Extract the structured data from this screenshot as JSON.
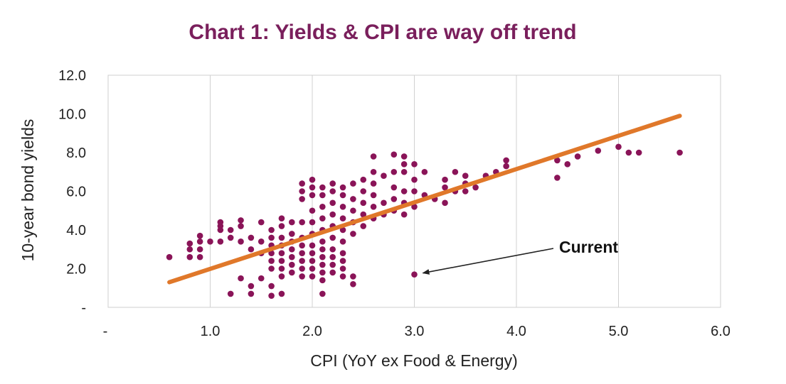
{
  "chart_data": {
    "type": "scatter",
    "title": "Chart 1: Yields & CPI are way off trend",
    "xlabel": "CPI (YoY ex Food & Energy)",
    "ylabel": "10-year bond yields",
    "xlim": [
      0,
      6
    ],
    "ylim": [
      0,
      12
    ],
    "x_ticks": [
      0,
      1,
      2,
      3,
      4,
      5,
      6
    ],
    "x_tick_labels": [
      "-",
      "1.0",
      "2.0",
      "3.0",
      "4.0",
      "5.0",
      "6.0"
    ],
    "y_ticks": [
      0,
      2,
      4,
      6,
      8,
      10,
      12
    ],
    "y_tick_labels": [
      "-",
      "2.0",
      "4.0",
      "6.0",
      "8.0",
      "10.0",
      "12.0"
    ],
    "grid": "vertical",
    "series": [
      {
        "kind": "points",
        "color": "#8a1458",
        "points": [
          [
            0.6,
            2.6
          ],
          [
            0.8,
            2.6
          ],
          [
            0.8,
            3.0
          ],
          [
            0.8,
            3.3
          ],
          [
            0.9,
            2.6
          ],
          [
            0.9,
            3.0
          ],
          [
            0.9,
            3.4
          ],
          [
            0.9,
            3.7
          ],
          [
            1.0,
            3.4
          ],
          [
            1.1,
            4.0
          ],
          [
            1.1,
            4.2
          ],
          [
            1.1,
            4.4
          ],
          [
            1.1,
            3.4
          ],
          [
            1.2,
            3.6
          ],
          [
            1.2,
            4.0
          ],
          [
            1.2,
            0.7
          ],
          [
            1.3,
            3.4
          ],
          [
            1.3,
            4.2
          ],
          [
            1.3,
            4.5
          ],
          [
            1.3,
            1.5
          ],
          [
            1.4,
            3.0
          ],
          [
            1.4,
            3.6
          ],
          [
            1.4,
            1.1
          ],
          [
            1.4,
            0.7
          ],
          [
            1.5,
            2.8
          ],
          [
            1.5,
            3.4
          ],
          [
            1.5,
            4.4
          ],
          [
            1.5,
            1.5
          ],
          [
            1.6,
            2.0
          ],
          [
            1.6,
            2.4
          ],
          [
            1.6,
            2.8
          ],
          [
            1.6,
            3.2
          ],
          [
            1.6,
            3.6
          ],
          [
            1.6,
            4.0
          ],
          [
            1.6,
            1.1
          ],
          [
            1.6,
            0.6
          ],
          [
            1.7,
            1.6
          ],
          [
            1.7,
            2.0
          ],
          [
            1.7,
            2.4
          ],
          [
            1.7,
            2.8
          ],
          [
            1.7,
            3.2
          ],
          [
            1.7,
            3.6
          ],
          [
            1.7,
            4.2
          ],
          [
            1.7,
            4.6
          ],
          [
            1.7,
            0.7
          ],
          [
            1.8,
            1.8
          ],
          [
            1.8,
            2.2
          ],
          [
            1.8,
            2.6
          ],
          [
            1.8,
            3.0
          ],
          [
            1.8,
            3.4
          ],
          [
            1.8,
            3.8
          ],
          [
            1.8,
            4.4
          ],
          [
            1.9,
            1.6
          ],
          [
            1.9,
            2.0
          ],
          [
            1.9,
            2.4
          ],
          [
            1.9,
            2.8
          ],
          [
            1.9,
            3.2
          ],
          [
            1.9,
            3.6
          ],
          [
            1.9,
            4.4
          ],
          [
            1.9,
            5.6
          ],
          [
            1.9,
            6.0
          ],
          [
            1.9,
            6.4
          ],
          [
            2.0,
            1.6
          ],
          [
            2.0,
            2.0
          ],
          [
            2.0,
            2.4
          ],
          [
            2.0,
            2.8
          ],
          [
            2.0,
            3.2
          ],
          [
            2.0,
            3.8
          ],
          [
            2.0,
            4.4
          ],
          [
            2.0,
            5.0
          ],
          [
            2.0,
            5.8
          ],
          [
            2.0,
            6.2
          ],
          [
            2.0,
            6.6
          ],
          [
            2.1,
            1.4
          ],
          [
            2.1,
            1.8
          ],
          [
            2.1,
            2.2
          ],
          [
            2.1,
            2.6
          ],
          [
            2.1,
            3.0
          ],
          [
            2.1,
            3.4
          ],
          [
            2.1,
            4.0
          ],
          [
            2.1,
            4.6
          ],
          [
            2.1,
            5.2
          ],
          [
            2.1,
            5.8
          ],
          [
            2.1,
            6.2
          ],
          [
            2.1,
            0.7
          ],
          [
            2.2,
            1.8
          ],
          [
            2.2,
            2.2
          ],
          [
            2.2,
            2.6
          ],
          [
            2.2,
            3.0
          ],
          [
            2.2,
            3.6
          ],
          [
            2.2,
            4.2
          ],
          [
            2.2,
            4.8
          ],
          [
            2.2,
            5.4
          ],
          [
            2.2,
            6.0
          ],
          [
            2.2,
            6.4
          ],
          [
            2.3,
            1.6
          ],
          [
            2.3,
            2.0
          ],
          [
            2.3,
            2.4
          ],
          [
            2.3,
            2.8
          ],
          [
            2.3,
            3.4
          ],
          [
            2.3,
            4.0
          ],
          [
            2.3,
            4.6
          ],
          [
            2.3,
            5.2
          ],
          [
            2.3,
            5.8
          ],
          [
            2.3,
            6.2
          ],
          [
            2.4,
            1.2
          ],
          [
            2.4,
            1.6
          ],
          [
            2.4,
            3.8
          ],
          [
            2.4,
            4.4
          ],
          [
            2.4,
            5.0
          ],
          [
            2.4,
            5.6
          ],
          [
            2.4,
            6.4
          ],
          [
            2.5,
            4.2
          ],
          [
            2.5,
            4.8
          ],
          [
            2.5,
            5.4
          ],
          [
            2.5,
            6.0
          ],
          [
            2.5,
            6.6
          ],
          [
            2.6,
            4.6
          ],
          [
            2.6,
            5.2
          ],
          [
            2.6,
            5.8
          ],
          [
            2.6,
            6.4
          ],
          [
            2.6,
            7.0
          ],
          [
            2.6,
            7.8
          ],
          [
            2.7,
            4.8
          ],
          [
            2.7,
            5.4
          ],
          [
            2.7,
            6.8
          ],
          [
            2.8,
            5.0
          ],
          [
            2.8,
            5.6
          ],
          [
            2.8,
            6.2
          ],
          [
            2.8,
            7.0
          ],
          [
            2.8,
            7.9
          ],
          [
            2.9,
            4.8
          ],
          [
            2.9,
            5.4
          ],
          [
            2.9,
            6.0
          ],
          [
            2.9,
            7.0
          ],
          [
            2.9,
            7.4
          ],
          [
            2.9,
            7.8
          ],
          [
            3.0,
            5.2
          ],
          [
            3.0,
            6.0
          ],
          [
            3.0,
            6.6
          ],
          [
            3.0,
            7.4
          ],
          [
            3.1,
            5.8
          ],
          [
            3.1,
            7.0
          ],
          [
            3.2,
            5.6
          ],
          [
            3.3,
            5.4
          ],
          [
            3.3,
            6.2
          ],
          [
            3.3,
            6.6
          ],
          [
            3.4,
            6.0
          ],
          [
            3.4,
            7.0
          ],
          [
            3.5,
            6.0
          ],
          [
            3.5,
            6.4
          ],
          [
            3.5,
            6.8
          ],
          [
            3.6,
            6.2
          ],
          [
            3.7,
            6.8
          ],
          [
            3.8,
            7.0
          ],
          [
            3.9,
            7.3
          ],
          [
            3.9,
            7.6
          ],
          [
            4.4,
            6.7
          ],
          [
            4.4,
            7.6
          ],
          [
            4.5,
            7.4
          ],
          [
            4.6,
            7.8
          ],
          [
            4.8,
            8.1
          ],
          [
            5.0,
            8.3
          ],
          [
            5.1,
            8.0
          ],
          [
            5.2,
            8.0
          ],
          [
            5.6,
            8.0
          ],
          [
            3.0,
            1.7
          ]
        ]
      },
      {
        "kind": "trendline",
        "color": "#e0782a",
        "x": [
          0.6,
          5.6
        ],
        "y": [
          1.3,
          9.9
        ]
      }
    ],
    "annotations": [
      {
        "text": "Current",
        "target": [
          3.0,
          1.7
        ]
      }
    ],
    "colors": {
      "title": "#7a1f5c",
      "points": "#8a1458",
      "trendline": "#e0782a",
      "grid": "#d0d0d0"
    }
  }
}
